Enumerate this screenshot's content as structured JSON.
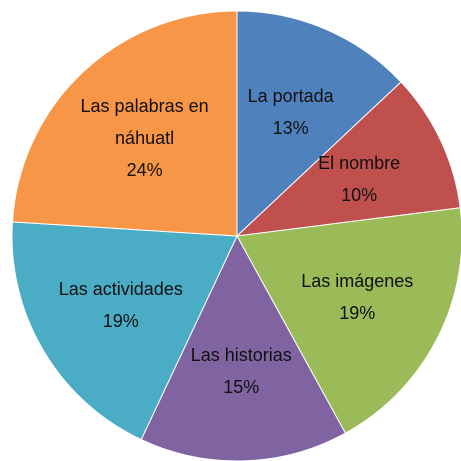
{
  "chart_data": {
    "type": "pie",
    "categories": [
      "La portada",
      "El nombre",
      "Las imágenes",
      "Las historias",
      "Las actividades",
      "Las palabras en náhuatl"
    ],
    "values": [
      13,
      10,
      19,
      15,
      19,
      24
    ],
    "value_labels": [
      "13%",
      "10%",
      "19%",
      "15%",
      "19%",
      "24%"
    ],
    "colors": [
      "#4f81bd",
      "#c0504d",
      "#9bbb59",
      "#8064a2",
      "#4bacc6",
      "#f79646"
    ]
  }
}
